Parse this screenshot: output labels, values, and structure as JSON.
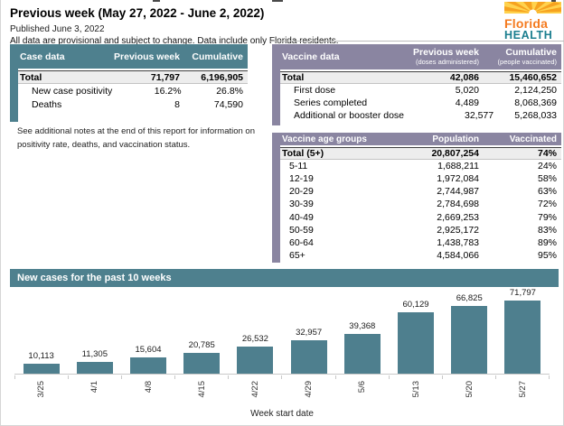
{
  "header": {
    "title": "Previous week (May 27, 2022 - June 2, 2022)",
    "published": "Published June 3, 2022",
    "disclaimer": "All data are provisional and subject to change. Data include only Florida residents.",
    "logo_line1": "Florida",
    "logo_line2": "HEALTH"
  },
  "case_table": {
    "title": "Case data",
    "columns": [
      "Previous week",
      "Cumulative"
    ],
    "rows": [
      {
        "label": "Total",
        "previous_week": "71,797",
        "cumulative": "6,196,905",
        "total": true
      },
      {
        "label": "New case positivity",
        "previous_week": "16.2%",
        "cumulative": "26.8%"
      },
      {
        "label": "Deaths",
        "previous_week": "8",
        "cumulative": "74,590"
      }
    ]
  },
  "note": "See additional notes at the end of this report for information on positivity rate, deaths, and vaccination status.",
  "vaccine_table": {
    "title": "Vaccine data",
    "columns": [
      {
        "main": "Previous week",
        "sub": "(doses administered)"
      },
      {
        "main": "Cumulative",
        "sub": "(people vaccinated)"
      }
    ],
    "rows": [
      {
        "label": "Total",
        "previous_week": "42,086",
        "cumulative": "15,460,652",
        "total": true
      },
      {
        "label": "First dose",
        "previous_week": "5,020",
        "cumulative": "2,124,250"
      },
      {
        "label": "Series completed",
        "previous_week": "4,489",
        "cumulative": "8,068,369"
      },
      {
        "label": "Additional or booster dose",
        "previous_week": "32,577",
        "cumulative": "5,268,033"
      }
    ]
  },
  "age_table": {
    "title": "Vaccine age groups",
    "columns": [
      "Population",
      "Vaccinated"
    ],
    "rows": [
      {
        "label": "Total (5+)",
        "population": "20,807,254",
        "vaccinated": "74%",
        "total": true
      },
      {
        "label": "5-11",
        "population": "1,688,211",
        "vaccinated": "24%"
      },
      {
        "label": "12-19",
        "population": "1,972,084",
        "vaccinated": "58%"
      },
      {
        "label": "20-29",
        "population": "2,744,987",
        "vaccinated": "63%"
      },
      {
        "label": "30-39",
        "population": "2,784,698",
        "vaccinated": "72%"
      },
      {
        "label": "40-49",
        "population": "2,669,253",
        "vaccinated": "79%"
      },
      {
        "label": "50-59",
        "population": "2,925,172",
        "vaccinated": "83%"
      },
      {
        "label": "60-64",
        "population": "1,438,783",
        "vaccinated": "89%"
      },
      {
        "label": "65+",
        "population": "4,584,066",
        "vaccinated": "95%"
      }
    ]
  },
  "chart_data": {
    "type": "bar",
    "title": "New cases for the past 10 weeks",
    "xlabel": "Week start date",
    "ylabel": "",
    "categories": [
      "3/25",
      "4/1",
      "4/8",
      "4/15",
      "4/22",
      "4/29",
      "5/6",
      "5/13",
      "5/20",
      "5/27"
    ],
    "values": [
      10113,
      11305,
      15604,
      20785,
      26532,
      32957,
      39368,
      60129,
      66825,
      71797
    ],
    "value_labels": [
      "10,113",
      "11,305",
      "15,604",
      "20,785",
      "26,532",
      "32,957",
      "39,368",
      "60,129",
      "66,825",
      "71,797"
    ],
    "bar_color": "#4e7f8e",
    "ylim": [
      0,
      75000
    ],
    "grid": false,
    "legend": false
  },
  "colors": {
    "teal_header": "#4e808e",
    "purple_header": "#8a85a1",
    "total_row_bg": "#ededed",
    "logo_orange": "#f47b20",
    "logo_teal": "#1b7e8f",
    "logo_yellow": "#ffd24d"
  }
}
